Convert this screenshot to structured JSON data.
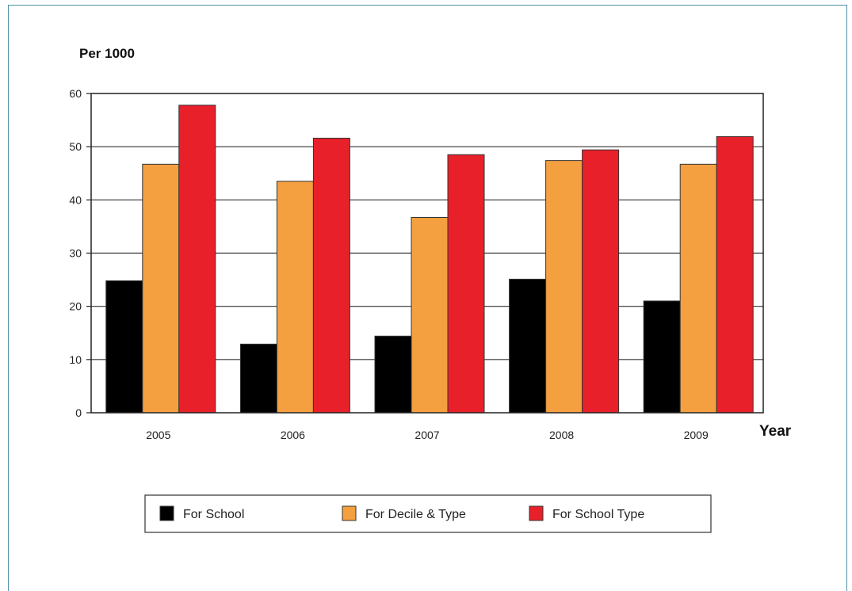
{
  "chart_data": {
    "type": "bar",
    "title": "",
    "ylabel": "Per 1000",
    "xlabel": "Year",
    "ylim": [
      0,
      60
    ],
    "yticks": [
      0,
      10,
      20,
      30,
      40,
      50,
      60
    ],
    "grid": true,
    "legend_position": "bottom",
    "categories": [
      "2005",
      "2006",
      "2007",
      "2008",
      "2009"
    ],
    "series": [
      {
        "name": "For School",
        "color": "#000000",
        "values": [
          24.8,
          12.9,
          14.4,
          25.1,
          21.0
        ]
      },
      {
        "name": "For Decile & Type",
        "color": "#f4a040",
        "values": [
          46.7,
          43.5,
          36.7,
          47.4,
          46.7
        ]
      },
      {
        "name": "For School Type",
        "color": "#e8202a",
        "values": [
          57.8,
          51.6,
          48.5,
          49.4,
          51.9
        ]
      }
    ]
  }
}
